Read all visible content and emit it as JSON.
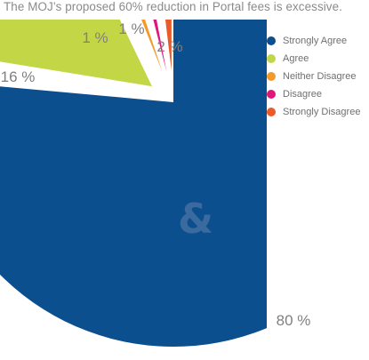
{
  "chart_data": {
    "type": "pie",
    "title": "The MOJ’s proposed 60% reduction in Portal fees is excessive.",
    "exploded": true,
    "slices": [
      {
        "label": "Strongly Agree",
        "value": 80,
        "value_label": "80 %",
        "color": "#0c4f8f"
      },
      {
        "label": "Agree",
        "value": 16,
        "value_label": "16 %",
        "color": "#c3d746"
      },
      {
        "label": "Neither Disagree",
        "value": 1,
        "value_label": "1 %",
        "color": "#f39a2b"
      },
      {
        "label": "Disagree",
        "value": 1,
        "value_label": "1 %",
        "color": "#e0167c"
      },
      {
        "label": "Strongly Disagree",
        "value": 2,
        "value_label": "2 %",
        "color": "#ec5a2a"
      }
    ],
    "legend_position": "top-right"
  },
  "logo": {
    "text": "&",
    "color": "#3a6a9e"
  }
}
